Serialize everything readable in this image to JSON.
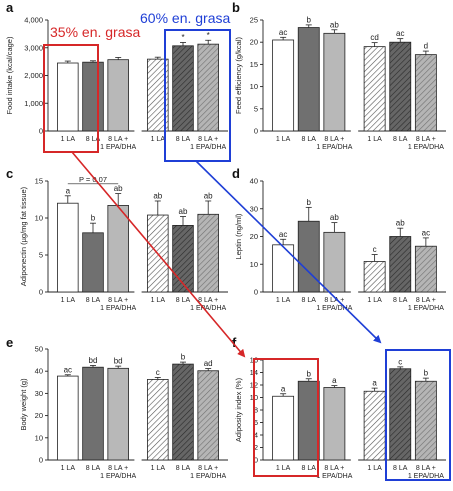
{
  "annotations": {
    "low_fat_label": "35% en. grasa",
    "high_fat_label": "60% en. grasa",
    "low_fat_color": "#d62728",
    "high_fat_color": "#1f3fd6"
  },
  "bar_styles": [
    "white",
    "dark-gray",
    "light-gray",
    "hatch-white",
    "hatch-dark",
    "hatch-light"
  ],
  "category_labels": [
    "1 LA",
    "8 LA",
    "8 LA +",
    "1 EPA/DHA",
    "1 LA",
    "8 LA",
    "8 LA +",
    "1 EPA/DHA"
  ],
  "chart_data": [
    {
      "panel": "a",
      "type": "bar",
      "ylabel": "Food intake (kcal/cage)",
      "ylim": [
        0,
        4000
      ],
      "yticks": [
        "0",
        "1,000",
        "2,000",
        "3,000",
        "4,000"
      ],
      "values": [
        2450,
        2480,
        2570,
        2590,
        3070,
        3130
      ],
      "errors": [
        70,
        50,
        80,
        70,
        120,
        140
      ],
      "sig": [
        "",
        "",
        "",
        "",
        "*",
        "*"
      ]
    },
    {
      "panel": "b",
      "type": "bar",
      "ylabel": "Feed efficiency (g/kcal)",
      "ylim": [
        0,
        25
      ],
      "yticks": [
        "0",
        "5",
        "10",
        "15",
        "20",
        "25"
      ],
      "values": [
        20.5,
        23.3,
        22.0,
        19.0,
        20.0,
        17.2
      ],
      "errors": [
        0.6,
        0.6,
        0.8,
        0.9,
        0.8,
        0.8
      ],
      "sig": [
        "ac",
        "b",
        "ab",
        "cd",
        "ac",
        "d"
      ]
    },
    {
      "panel": "c",
      "type": "bar",
      "ylabel": "Adiponectin (µg/mg fat tissue)",
      "ylim": [
        0,
        15
      ],
      "yticks": [
        "0",
        "5",
        "10",
        "15"
      ],
      "values": [
        12.0,
        8.0,
        11.7,
        10.4,
        9.0,
        10.5
      ],
      "errors": [
        1.0,
        1.3,
        1.6,
        1.9,
        1.2,
        1.8
      ],
      "sig": [
        "a",
        "b",
        "ab",
        "ab",
        "ab",
        "ab"
      ],
      "bracket_p": "P = 0.07"
    },
    {
      "panel": "d",
      "type": "bar",
      "ylabel": "Leptin (ng/ml)",
      "ylim": [
        0,
        40
      ],
      "yticks": [
        "0",
        "10",
        "20",
        "30",
        "40"
      ],
      "values": [
        17,
        25.5,
        21.5,
        11,
        20,
        16.5
      ],
      "errors": [
        2,
        5,
        3.5,
        2.5,
        3,
        3
      ],
      "sig": [
        "ac",
        "b",
        "ab",
        "c",
        "ab",
        "ac"
      ]
    },
    {
      "panel": "e",
      "type": "bar",
      "ylabel": "Body weight (g)",
      "ylim": [
        0,
        50
      ],
      "yticks": [
        "0",
        "10",
        "20",
        "30",
        "40",
        "50"
      ],
      "values": [
        37.8,
        41.8,
        41.3,
        36.3,
        43.2,
        40.2
      ],
      "errors": [
        0.6,
        0.8,
        1.0,
        0.9,
        0.9,
        1.0
      ],
      "sig": [
        "ac",
        "bd",
        "bd",
        "c",
        "b",
        "ad"
      ]
    },
    {
      "panel": "f",
      "type": "bar",
      "ylabel": "Adiposity index (%)",
      "ylim": [
        0,
        16
      ],
      "yticks": [
        "0",
        "2",
        "4",
        "6",
        "8",
        "10",
        "12",
        "14",
        "16"
      ],
      "values": [
        10.2,
        12.6,
        11.6,
        11.0,
        14.6,
        12.6
      ],
      "errors": [
        0.4,
        0.4,
        0.3,
        0.5,
        0.3,
        0.5
      ],
      "sig": [
        "a",
        "b",
        "a",
        "a",
        "c",
        "b"
      ]
    }
  ]
}
